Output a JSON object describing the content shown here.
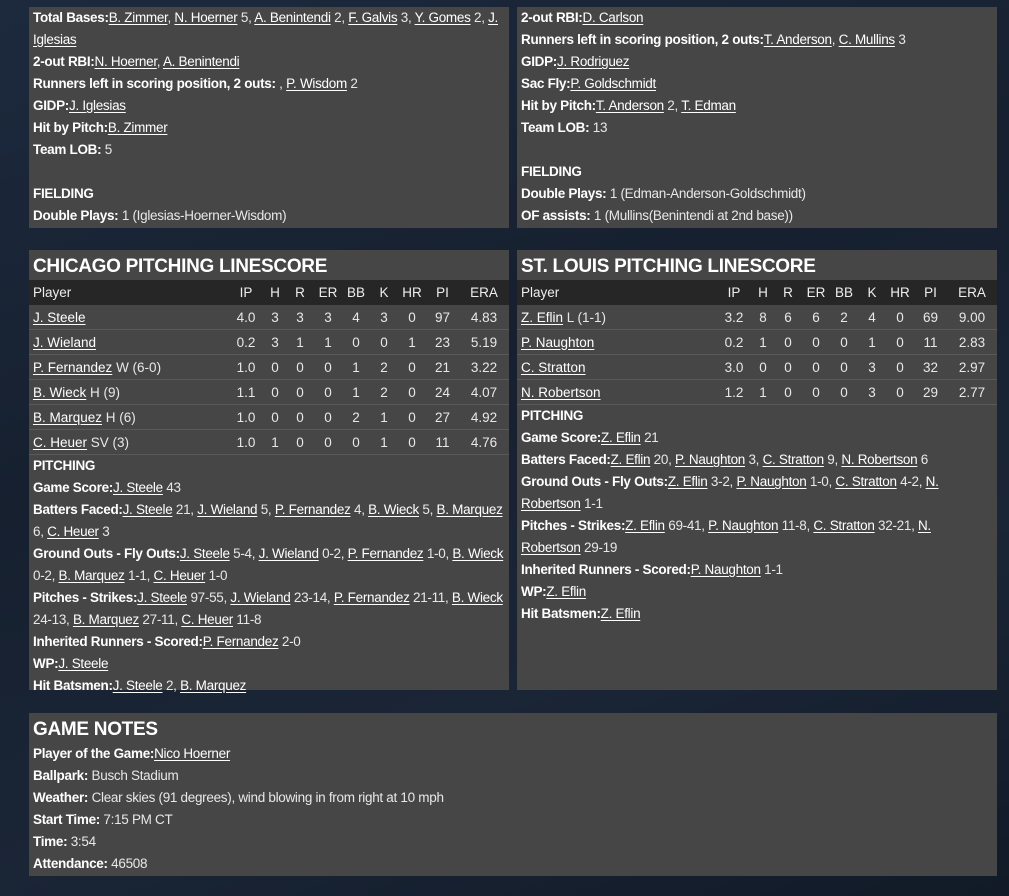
{
  "chicago_batting_extra": [
    {
      "label": "Total Bases:",
      "parts": [
        {
          "t": "B. Zimmer",
          "l": true
        },
        {
          "t": ", "
        },
        {
          "t": "N. Hoerner",
          "l": true
        },
        {
          "t": " 5, "
        },
        {
          "t": "A. Benintendi",
          "l": true
        },
        {
          "t": " 2, "
        },
        {
          "t": "F. Galvis",
          "l": true
        },
        {
          "t": " 3, "
        },
        {
          "t": "Y. Gomes",
          "l": true
        },
        {
          "t": " 2, "
        },
        {
          "t": "J. Iglesias",
          "l": true
        }
      ]
    },
    {
      "label": "2-out RBI:",
      "parts": [
        {
          "t": "N. Hoerner",
          "l": true
        },
        {
          "t": ", "
        },
        {
          "t": "A. Benintendi",
          "l": true
        }
      ]
    },
    {
      "label": "Runners left in scoring position, 2 outs:",
      "parts": [
        {
          "t": " , "
        },
        {
          "t": "P. Wisdom",
          "l": true
        },
        {
          "t": " 2"
        }
      ]
    },
    {
      "label": "GIDP:",
      "parts": [
        {
          "t": "J. Iglesias",
          "l": true
        }
      ]
    },
    {
      "label": "Hit by Pitch:",
      "parts": [
        {
          "t": "B. Zimmer",
          "l": true
        }
      ]
    },
    {
      "label": "Team LOB:",
      "parts": [
        {
          "t": " 5"
        }
      ]
    },
    {
      "label": "",
      "parts": []
    },
    {
      "section": "FIELDING"
    },
    {
      "label": "Double Plays:",
      "parts": [
        {
          "t": " 1 (Iglesias-Hoerner-Wisdom)"
        }
      ]
    }
  ],
  "stlouis_batting_extra": [
    {
      "label": "2-out RBI:",
      "parts": [
        {
          "t": "D. Carlson",
          "l": true
        }
      ]
    },
    {
      "label": "Runners left in scoring position, 2 outs:",
      "parts": [
        {
          "t": "T. Anderson",
          "l": true
        },
        {
          "t": ", "
        },
        {
          "t": "C. Mullins",
          "l": true
        },
        {
          "t": " 3"
        }
      ]
    },
    {
      "label": "GIDP:",
      "parts": [
        {
          "t": "J. Rodriguez",
          "l": true
        }
      ]
    },
    {
      "label": "Sac Fly:",
      "parts": [
        {
          "t": "P. Goldschmidt",
          "l": true
        }
      ]
    },
    {
      "label": "Hit by Pitch:",
      "parts": [
        {
          "t": "T. Anderson",
          "l": true
        },
        {
          "t": " 2, "
        },
        {
          "t": "T. Edman",
          "l": true
        }
      ]
    },
    {
      "label": "Team LOB:",
      "parts": [
        {
          "t": " 13"
        }
      ]
    },
    {
      "label": "",
      "parts": []
    },
    {
      "section": "FIELDING"
    },
    {
      "label": "Double Plays:",
      "parts": [
        {
          "t": " 1 (Edman-Anderson-Goldschmidt)"
        }
      ]
    },
    {
      "label": "OF assists:",
      "parts": [
        {
          "t": " 1 (Mullins(Benintendi at 2nd base))"
        }
      ]
    }
  ],
  "columns": [
    "Player",
    "IP",
    "H",
    "R",
    "ER",
    "BB",
    "K",
    "HR",
    "PI",
    "ERA"
  ],
  "chicago_pitching": {
    "title": "CHICAGO PITCHING LINESCORE",
    "rows": [
      {
        "name": "J. Steele",
        "note": "",
        "stats": [
          "4.0",
          "3",
          "3",
          "3",
          "4",
          "3",
          "0",
          "97",
          "4.83"
        ]
      },
      {
        "name": "J. Wieland",
        "note": "",
        "stats": [
          "0.2",
          "3",
          "1",
          "1",
          "0",
          "0",
          "1",
          "23",
          "5.19"
        ]
      },
      {
        "name": "P. Fernandez",
        "note": " W (6-0)",
        "stats": [
          "1.0",
          "0",
          "0",
          "0",
          "1",
          "2",
          "0",
          "21",
          "3.22"
        ]
      },
      {
        "name": "B. Wieck",
        "note": " H (9)",
        "stats": [
          "1.1",
          "0",
          "0",
          "0",
          "1",
          "2",
          "0",
          "24",
          "4.07"
        ]
      },
      {
        "name": "B. Marquez",
        "note": " H (6)",
        "stats": [
          "1.0",
          "0",
          "0",
          "0",
          "2",
          "1",
          "0",
          "27",
          "4.92"
        ]
      },
      {
        "name": "C. Heuer",
        "note": " SV (3)",
        "stats": [
          "1.0",
          "1",
          "0",
          "0",
          "0",
          "1",
          "0",
          "11",
          "4.76"
        ]
      }
    ],
    "lines": [
      {
        "section": "PITCHING"
      },
      {
        "label": "Game Score:",
        "parts": [
          {
            "t": "J. Steele",
            "l": true
          },
          {
            "t": " 43"
          }
        ]
      },
      {
        "label": "Batters Faced:",
        "wrap": true,
        "parts": [
          {
            "t": "J. Steele",
            "l": true
          },
          {
            "t": " 21, "
          },
          {
            "t": "J. Wieland",
            "l": true
          },
          {
            "t": " 5, "
          },
          {
            "t": "P. Fernandez",
            "l": true
          },
          {
            "t": " 4, "
          },
          {
            "t": "B. Wieck",
            "l": true
          },
          {
            "t": " 5, "
          },
          {
            "t": "B. Marquez",
            "l": true
          },
          {
            "t": " 6, "
          },
          {
            "t": "C. Heuer",
            "l": true
          },
          {
            "t": " 3"
          }
        ]
      },
      {
        "label": "Ground Outs - Fly Outs:",
        "wrap": true,
        "parts": [
          {
            "t": "J. Steele",
            "l": true
          },
          {
            "t": " 5-4, "
          },
          {
            "t": "J. Wieland",
            "l": true
          },
          {
            "t": " 0-2, "
          },
          {
            "t": "P. Fernandez",
            "l": true
          },
          {
            "t": " 1-0, "
          },
          {
            "t": "B. Wieck",
            "l": true
          },
          {
            "t": " 0-2, "
          },
          {
            "t": "B. Marquez",
            "l": true
          },
          {
            "t": " 1-1, "
          },
          {
            "t": "C. Heuer",
            "l": true
          },
          {
            "t": " 1-0"
          }
        ]
      },
      {
        "label": "Pitches - Strikes:",
        "wrap": true,
        "parts": [
          {
            "t": "J. Steele",
            "l": true
          },
          {
            "t": " 97-55, "
          },
          {
            "t": "J. Wieland",
            "l": true
          },
          {
            "t": " 23-14, "
          },
          {
            "t": "P. Fernandez",
            "l": true
          },
          {
            "t": " 21-11, "
          },
          {
            "t": "B. Wieck",
            "l": true
          },
          {
            "t": " 24-13, "
          },
          {
            "t": "B. Marquez",
            "l": true
          },
          {
            "t": " 27-11, "
          },
          {
            "t": "C. Heuer",
            "l": true
          },
          {
            "t": " 11-8"
          }
        ]
      },
      {
        "label": "Inherited Runners - Scored:",
        "parts": [
          {
            "t": "P. Fernandez",
            "l": true
          },
          {
            "t": " 2-0"
          }
        ]
      },
      {
        "label": "WP:",
        "parts": [
          {
            "t": "J. Steele",
            "l": true
          }
        ]
      },
      {
        "label": "Hit Batsmen:",
        "parts": [
          {
            "t": "J. Steele",
            "l": true
          },
          {
            "t": " 2, "
          },
          {
            "t": "B. Marquez",
            "l": true
          }
        ]
      }
    ]
  },
  "stlouis_pitching": {
    "title": "ST. LOUIS PITCHING LINESCORE",
    "rows": [
      {
        "name": "Z. Eflin",
        "note": " L (1-1)",
        "stats": [
          "3.2",
          "8",
          "6",
          "6",
          "2",
          "4",
          "0",
          "69",
          "9.00"
        ]
      },
      {
        "name": "P. Naughton",
        "note": "",
        "stats": [
          "0.2",
          "1",
          "0",
          "0",
          "0",
          "1",
          "0",
          "11",
          "2.83"
        ]
      },
      {
        "name": "C. Stratton",
        "note": "",
        "stats": [
          "3.0",
          "0",
          "0",
          "0",
          "0",
          "3",
          "0",
          "32",
          "2.97"
        ]
      },
      {
        "name": "N. Robertson",
        "note": "",
        "stats": [
          "1.2",
          "1",
          "0",
          "0",
          "0",
          "3",
          "0",
          "29",
          "2.77"
        ]
      }
    ],
    "lines": [
      {
        "section": "PITCHING"
      },
      {
        "label": "Game Score:",
        "parts": [
          {
            "t": "Z. Eflin",
            "l": true
          },
          {
            "t": " 21"
          }
        ]
      },
      {
        "label": "Batters Faced:",
        "parts": [
          {
            "t": "Z. Eflin",
            "l": true
          },
          {
            "t": " 20, "
          },
          {
            "t": "P. Naughton",
            "l": true
          },
          {
            "t": " 3, "
          },
          {
            "t": "C. Stratton",
            "l": true
          },
          {
            "t": " 9, "
          },
          {
            "t": "N. Robertson",
            "l": true
          },
          {
            "t": " 6"
          }
        ]
      },
      {
        "label": "Ground Outs - Fly Outs:",
        "wrap": true,
        "parts": [
          {
            "t": "Z. Eflin",
            "l": true
          },
          {
            "t": " 3-2, "
          },
          {
            "t": "P. Naughton",
            "l": true
          },
          {
            "t": " 1-0, "
          },
          {
            "t": "C. Stratton",
            "l": true
          },
          {
            "t": " 4-2, "
          },
          {
            "t": "N. Robertson",
            "l": true
          },
          {
            "t": " 1-1"
          }
        ]
      },
      {
        "label": "Pitches - Strikes:",
        "wrap": true,
        "parts": [
          {
            "t": "Z. Eflin",
            "l": true
          },
          {
            "t": " 69-41, "
          },
          {
            "t": "P. Naughton",
            "l": true
          },
          {
            "t": " 11-8, "
          },
          {
            "t": "C. Stratton",
            "l": true
          },
          {
            "t": " 32-21, "
          },
          {
            "t": "N. Robertson",
            "l": true
          },
          {
            "t": " 29-19"
          }
        ]
      },
      {
        "label": "Inherited Runners - Scored:",
        "parts": [
          {
            "t": "P. Naughton",
            "l": true
          },
          {
            "t": " 1-1"
          }
        ]
      },
      {
        "label": "WP:",
        "parts": [
          {
            "t": "Z. Eflin",
            "l": true
          }
        ]
      },
      {
        "label": "Hit Batsmen:",
        "parts": [
          {
            "t": "Z. Eflin",
            "l": true
          }
        ]
      }
    ]
  },
  "game_notes": {
    "title": "GAME NOTES",
    "lines": [
      {
        "label": "Player of the Game:",
        "parts": [
          {
            "t": "Nico Hoerner",
            "l": true
          }
        ]
      },
      {
        "label": "Ballpark:",
        "parts": [
          {
            "t": " Busch Stadium"
          }
        ]
      },
      {
        "label": "Weather:",
        "parts": [
          {
            "t": " Clear skies (91 degrees), wind blowing in from right at 10 mph"
          }
        ]
      },
      {
        "label": "Start Time:",
        "parts": [
          {
            "t": " 7:15 PM CT"
          }
        ]
      },
      {
        "label": "Time:",
        "parts": [
          {
            "t": " 3:54"
          }
        ]
      },
      {
        "label": "Attendance:",
        "parts": [
          {
            "t": " 46508"
          }
        ]
      }
    ]
  }
}
